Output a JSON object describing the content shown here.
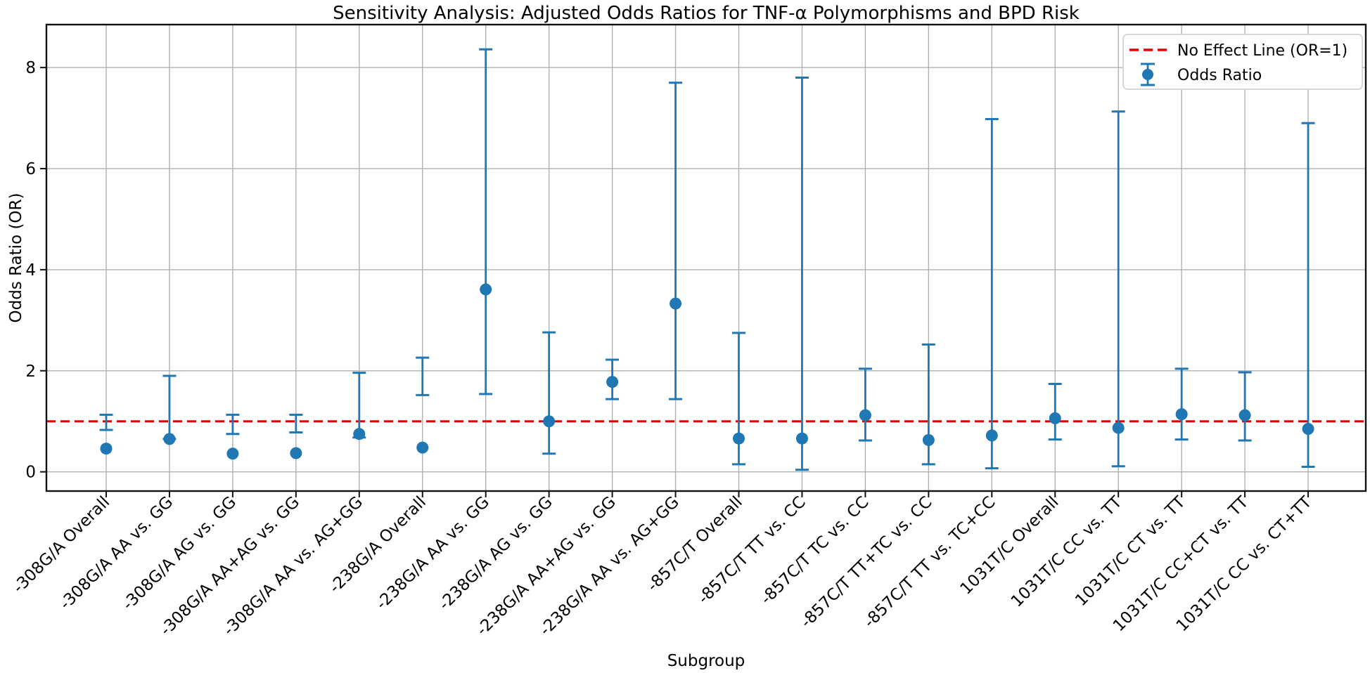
{
  "chart_data": {
    "type": "scatter",
    "title": "Sensitivity Analysis: Adjusted Odds Ratios for TNF-α Polymorphisms and BPD Risk",
    "xlabel": "Subgroup",
    "ylabel": "Odds Ratio (OR)",
    "ylim": [
      -0.38,
      8.85
    ],
    "yticks": [
      0,
      2,
      4,
      6,
      8
    ],
    "grid": true,
    "grid_color": "#b0b0b0",
    "legend_position": "upper right",
    "no_effect_line": {
      "y": 1.0,
      "label": "No Effect Line (OR=1)",
      "color": "#e00000",
      "style": "dashed"
    },
    "series": [
      {
        "name": "Odds Ratio",
        "color": "#1f77b4",
        "marker": "circle-with-error-bars",
        "categories": [
          "-308G/A Overall",
          "-308G/A AA vs. GG",
          "-308G/A AG vs. GG",
          "-308G/A AA+AG vs. GG",
          "-308G/A AA vs. AG+GG",
          "-238G/A Overall",
          "-238G/A AA vs. GG",
          "-238G/A AG vs. GG",
          "-238G/A AA+AG vs. GG",
          "-238G/A AA vs. AG+GG",
          "-857C/T Overall",
          "-857C/T TT vs. CC",
          "-857C/T TC vs. CC",
          "-857C/T TT+TC vs. CC",
          "-857C/T TT vs. TC+CC",
          "1031T/C Overall",
          "1031T/C CC vs. TT",
          "1031T/C CT vs. TT",
          "1031T/C CC+CT vs. TT",
          "1031T/C CC vs. CT+TT"
        ],
        "odds_ratio": [
          0.46,
          0.65,
          0.36,
          0.37,
          0.75,
          0.48,
          3.61,
          1.0,
          1.78,
          3.33,
          0.66,
          0.66,
          1.12,
          0.63,
          0.72,
          1.06,
          0.87,
          1.14,
          1.12,
          0.85
        ],
        "ci_low": [
          0.83,
          0.65,
          0.75,
          0.78,
          0.68,
          1.52,
          1.54,
          0.36,
          1.44,
          1.44,
          0.15,
          0.04,
          0.62,
          0.15,
          0.07,
          0.64,
          0.11,
          0.64,
          0.62,
          0.1
        ],
        "ci_high": [
          1.13,
          1.9,
          1.13,
          1.13,
          1.96,
          2.26,
          8.36,
          2.76,
          2.22,
          7.7,
          2.75,
          7.8,
          2.04,
          2.52,
          6.98,
          1.74,
          7.13,
          2.04,
          1.97,
          6.9
        ]
      }
    ]
  }
}
